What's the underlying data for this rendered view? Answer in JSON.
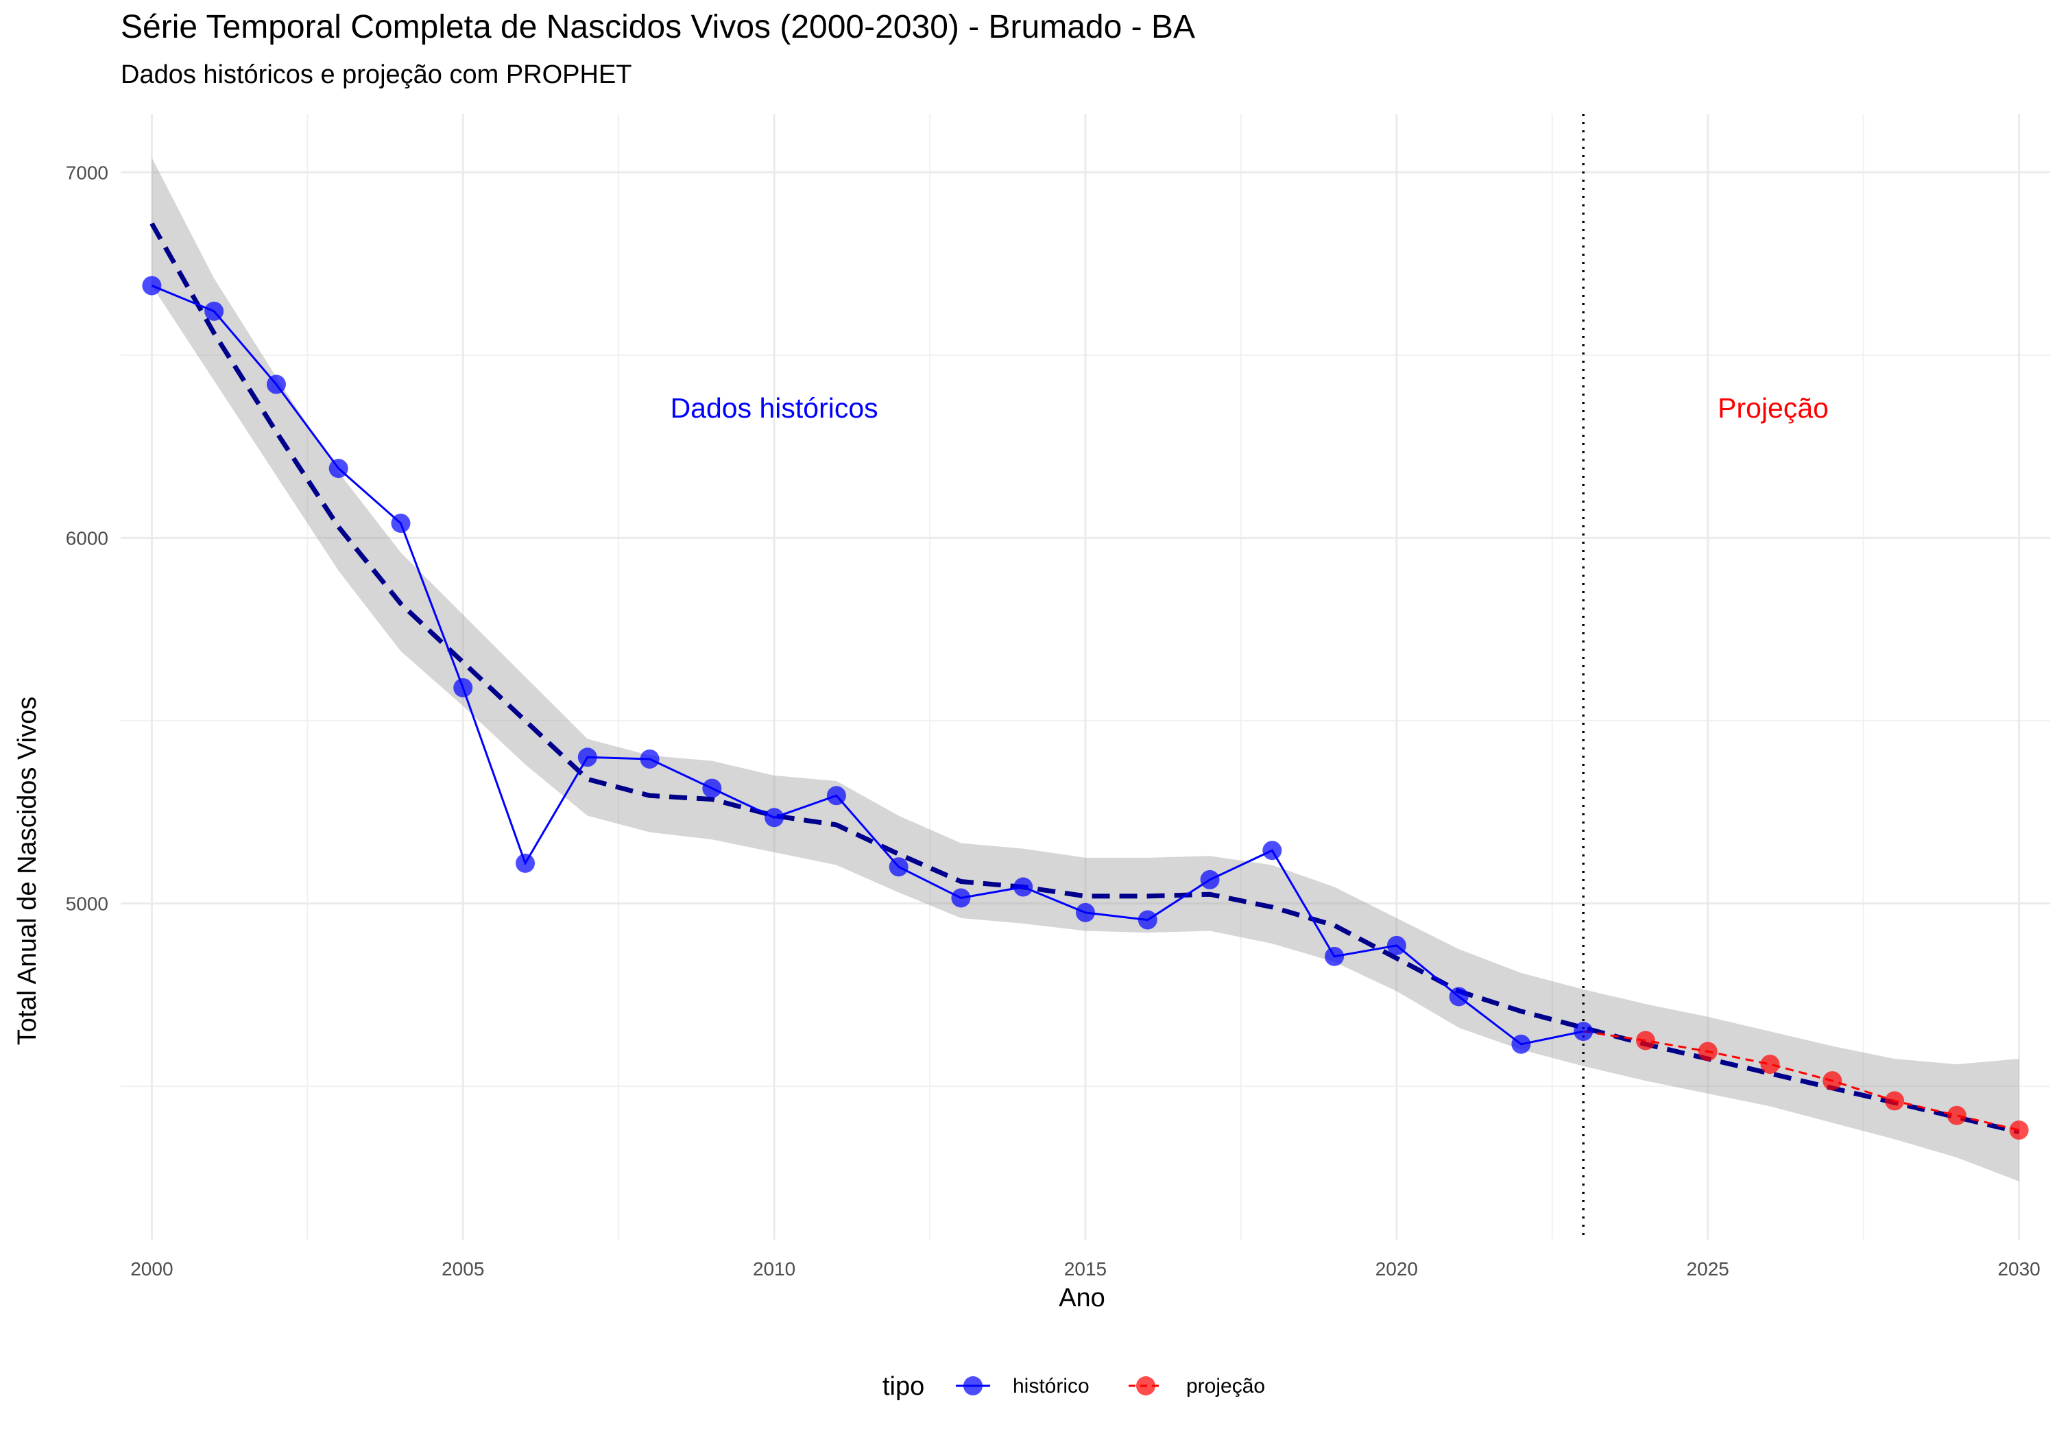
{
  "chart_data": {
    "type": "line",
    "title": "Série Temporal Completa de Nascidos Vivos (2000-2030) -  Brumado - BA",
    "subtitle": "Dados históricos e projeção com PROPHET",
    "xlabel": "Ano",
    "ylabel": "Total Anual de Nascidos Vivos",
    "xlim": [
      1999.5,
      2030.5
    ],
    "ylim": [
      4080,
      7160
    ],
    "x_ticks": [
      2000,
      2005,
      2010,
      2015,
      2020,
      2025,
      2030
    ],
    "y_ticks": [
      5000,
      6000,
      7000
    ],
    "grid": true,
    "legend_title": "tipo",
    "legend_position": "bottom",
    "series": [
      {
        "name": "histórico",
        "color": "#0000ff",
        "style": "solid",
        "x": [
          2000,
          2001,
          2002,
          2003,
          2004,
          2005,
          2006,
          2007,
          2008,
          2009,
          2010,
          2011,
          2012,
          2013,
          2014,
          2015,
          2016,
          2017,
          2018,
          2019,
          2020,
          2021,
          2022,
          2023
        ],
        "values": [
          6690,
          6620,
          6420,
          6190,
          6040,
          5590,
          5110,
          5400,
          5395,
          5315,
          5235,
          5295,
          5100,
          5015,
          5045,
          4975,
          4955,
          5065,
          5145,
          4855,
          4885,
          4745,
          4615,
          4650
        ]
      },
      {
        "name": "projeção",
        "color": "#ff0000",
        "style": "dashed",
        "x": [
          2023,
          2024,
          2025,
          2026,
          2027,
          2028,
          2029,
          2030
        ],
        "values": [
          4650,
          4625,
          4595,
          4560,
          4515,
          4460,
          4420,
          4380
        ]
      }
    ],
    "trend": {
      "color": "#00008b",
      "style": "dashed",
      "x": [
        2000,
        2001,
        2002,
        2003,
        2004,
        2005,
        2006,
        2007,
        2008,
        2009,
        2010,
        2011,
        2012,
        2013,
        2014,
        2015,
        2016,
        2017,
        2018,
        2019,
        2020,
        2021,
        2022,
        2023,
        2024,
        2025,
        2026,
        2027,
        2028,
        2029,
        2030
      ],
      "values": [
        6860,
        6560,
        6290,
        6030,
        5820,
        5660,
        5500,
        5340,
        5295,
        5285,
        5240,
        5215,
        5135,
        5060,
        5045,
        5020,
        5020,
        5025,
        4990,
        4940,
        4850,
        4760,
        4705,
        4660,
        4615,
        4575,
        4535,
        4495,
        4455,
        4415,
        4375
      ],
      "band_lower": [
        6690,
        6430,
        6170,
        5910,
        5690,
        5540,
        5380,
        5240,
        5195,
        5175,
        5140,
        5105,
        5030,
        4960,
        4945,
        4925,
        4920,
        4925,
        4890,
        4840,
        4760,
        4660,
        4600,
        4555,
        4515,
        4480,
        4445,
        4400,
        4355,
        4305,
        4240
      ],
      "band_upper": [
        7040,
        6710,
        6440,
        6180,
        5960,
        5790,
        5620,
        5450,
        5405,
        5390,
        5350,
        5335,
        5240,
        5165,
        5150,
        5125,
        5125,
        5130,
        5105,
        5045,
        4960,
        4875,
        4810,
        4765,
        4725,
        4690,
        4650,
        4610,
        4575,
        4560,
        4575
      ]
    },
    "vline": {
      "x": 2023,
      "style": "dotted"
    },
    "annotations": [
      {
        "text": "Dados históricos",
        "x": 2010,
        "y": 6355,
        "color": "#0000ff"
      },
      {
        "text": "Projeção",
        "x": 2026.05,
        "y": 6355,
        "color": "#ff0000"
      }
    ]
  }
}
